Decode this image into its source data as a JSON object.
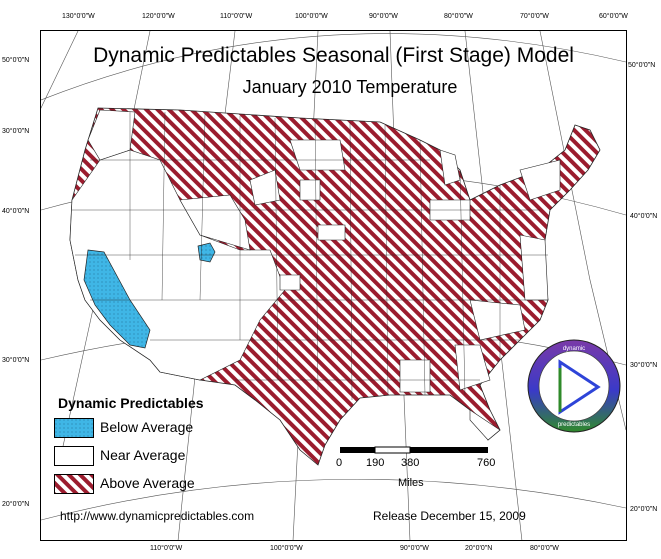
{
  "map": {
    "title": "Dynamic Predictables Seasonal (First Stage) Model",
    "subtitle": "January 2010 Temperature",
    "graticule": {
      "top": [
        "130°0'0\"W",
        "120°0'0\"W",
        "110°0'0\"W",
        "100°0'0\"W",
        "90°0'0\"W",
        "80°0'0\"W",
        "70°0'0\"W",
        "60°0'0\"W"
      ],
      "bottom": [
        "110°0'0\"W",
        "100°0'0\"W",
        "90°0'0\"W",
        "20°0'0\"N",
        "80°0'0\"W"
      ],
      "left": [
        "50°0'0\"N",
        "30°0'0\"N",
        "40°0'0\"N",
        "30°0'0\"N",
        "20°0'0\"N"
      ],
      "right": [
        "50°0'0\"N",
        "40°0'0\"N",
        "30°0'0\"N",
        "20°0'0\"N"
      ]
    },
    "legend": {
      "title": "Dynamic Predictables",
      "items": [
        {
          "label": "Below Average",
          "color": "#3fb6e6"
        },
        {
          "label": "Near Average",
          "color": "#ffffff"
        },
        {
          "label": "Above Average",
          "color": "#9b1c2e"
        }
      ]
    },
    "scale_bar": {
      "ticks": [
        "0",
        "190",
        "380",
        "760"
      ],
      "unit": "Miles"
    },
    "footer": {
      "url": "http://www.dynamicpredictables.com",
      "release": "Release December 15, 2009"
    },
    "logo": {
      "top_text": "dynamic",
      "bottom_text": "predictables",
      "colors": {
        "purple": "#6a2a96",
        "blue": "#2a36c8",
        "green": "#2f8a2a"
      }
    }
  }
}
